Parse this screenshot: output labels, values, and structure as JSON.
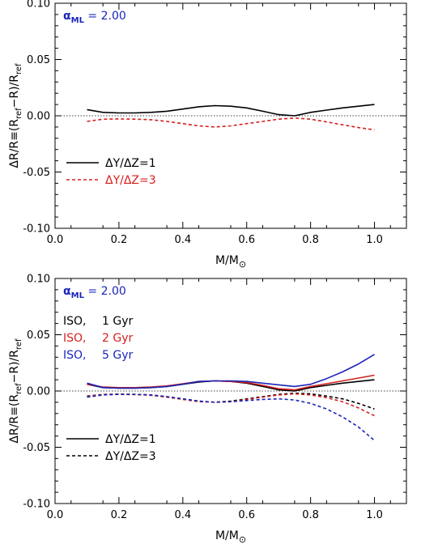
{
  "colors": {
    "black": "#000000",
    "red": "#d42020",
    "blue": "#1a25b8"
  },
  "chart_data": [
    {
      "type": "line",
      "xlabel": "M/M⊙",
      "ylabel": "ΔR/R≡(R_ref−R)/R_ref",
      "xlim": [
        0.0,
        1.1
      ],
      "ylim": [
        -0.1,
        0.1
      ],
      "xticks": [
        "0.0",
        "0.2",
        "0.4",
        "0.6",
        "0.8",
        "1.0"
      ],
      "yticks": [
        "0.10",
        "0.05",
        "0.00",
        "-0.05",
        "-0.10"
      ],
      "reference_line": 0.0,
      "annotation": {
        "symbol": "α",
        "subscript": "ML",
        "value": "= 2.00"
      },
      "legend": {
        "placement": "lower-left"
      },
      "series": [
        {
          "name": "ΔY/ΔZ=1",
          "style": "solid",
          "color": "#000000",
          "x": [
            0.1,
            0.15,
            0.2,
            0.25,
            0.3,
            0.35,
            0.4,
            0.45,
            0.5,
            0.55,
            0.6,
            0.65,
            0.7,
            0.75,
            0.8,
            0.85,
            0.9,
            0.95,
            1.0
          ],
          "y": [
            0.0055,
            0.003,
            0.0025,
            0.0025,
            0.003,
            0.004,
            0.006,
            0.008,
            0.009,
            0.0085,
            0.007,
            0.004,
            0.001,
            0.0,
            0.003,
            0.005,
            0.007,
            0.0085,
            0.01
          ]
        },
        {
          "name": "ΔY/ΔZ=3",
          "style": "dashed",
          "color": "#d42020",
          "x": [
            0.1,
            0.15,
            0.2,
            0.25,
            0.3,
            0.35,
            0.4,
            0.45,
            0.5,
            0.55,
            0.6,
            0.65,
            0.7,
            0.75,
            0.8,
            0.85,
            0.9,
            0.95,
            1.0
          ],
          "y": [
            -0.005,
            -0.003,
            -0.0028,
            -0.003,
            -0.0035,
            -0.005,
            -0.007,
            -0.009,
            -0.01,
            -0.009,
            -0.007,
            -0.005,
            -0.003,
            -0.002,
            -0.003,
            -0.0055,
            -0.008,
            -0.0105,
            -0.0125
          ]
        }
      ]
    },
    {
      "type": "line",
      "xlabel": "M/M⊙",
      "ylabel": "ΔR/R≡(R_ref−R)/R_ref",
      "xlim": [
        0.0,
        1.1
      ],
      "ylim": [
        -0.1,
        0.1
      ],
      "xticks": [
        "0.0",
        "0.2",
        "0.4",
        "0.6",
        "0.8",
        "1.0"
      ],
      "yticks": [
        "0.10",
        "0.05",
        "0.00",
        "-0.05",
        "-0.10"
      ],
      "reference_line": 0.0,
      "annotation": {
        "symbol": "α",
        "subscript": "ML",
        "value": "= 2.00"
      },
      "iso_labels": [
        {
          "prefix": "ISO,",
          "age": "1 Gyr",
          "color": "#000000"
        },
        {
          "prefix": "ISO,",
          "age": "2 Gyr",
          "color": "#d42020"
        },
        {
          "prefix": "ISO,",
          "age": "5 Gyr",
          "color": "#1a25b8"
        }
      ],
      "legend": {
        "placement": "lower-left",
        "entries": [
          {
            "label": "ΔY/ΔZ=1",
            "style": "solid"
          },
          {
            "label": "ΔY/ΔZ=3",
            "style": "dashed"
          }
        ]
      },
      "series": [
        {
          "age": "1 Gyr",
          "helium": "ΔY/ΔZ=1",
          "style": "solid",
          "color": "#000000",
          "x": [
            0.1,
            0.15,
            0.2,
            0.25,
            0.3,
            0.35,
            0.4,
            0.45,
            0.5,
            0.55,
            0.6,
            0.65,
            0.7,
            0.75,
            0.8,
            0.85,
            0.9,
            0.95,
            1.0
          ],
          "y": [
            0.006,
            0.003,
            0.0025,
            0.0025,
            0.003,
            0.004,
            0.006,
            0.008,
            0.009,
            0.0085,
            0.007,
            0.004,
            0.001,
            0.0,
            0.003,
            0.005,
            0.007,
            0.0085,
            0.01
          ]
        },
        {
          "age": "2 Gyr",
          "helium": "ΔY/ΔZ=1",
          "style": "solid",
          "color": "#d42020",
          "x": [
            0.1,
            0.15,
            0.2,
            0.25,
            0.3,
            0.35,
            0.4,
            0.45,
            0.5,
            0.55,
            0.6,
            0.65,
            0.7,
            0.75,
            0.8,
            0.85,
            0.9,
            0.95,
            1.0
          ],
          "y": [
            0.006,
            0.0035,
            0.003,
            0.003,
            0.0035,
            0.0045,
            0.0065,
            0.0085,
            0.009,
            0.0085,
            0.0075,
            0.005,
            0.002,
            0.001,
            0.004,
            0.0065,
            0.009,
            0.0115,
            0.014
          ]
        },
        {
          "age": "5 Gyr",
          "helium": "ΔY/ΔZ=1",
          "style": "solid",
          "color": "#1a25b8",
          "x": [
            0.1,
            0.15,
            0.2,
            0.25,
            0.3,
            0.35,
            0.4,
            0.45,
            0.5,
            0.55,
            0.6,
            0.65,
            0.7,
            0.75,
            0.8,
            0.85,
            0.9,
            0.95,
            1.0
          ],
          "y": [
            0.007,
            0.003,
            0.0025,
            0.0025,
            0.003,
            0.004,
            0.006,
            0.0085,
            0.009,
            0.009,
            0.0085,
            0.007,
            0.0055,
            0.004,
            0.006,
            0.011,
            0.017,
            0.024,
            0.0325
          ]
        },
        {
          "age": "1 Gyr",
          "helium": "ΔY/ΔZ=3",
          "style": "dashed",
          "color": "#000000",
          "x": [
            0.1,
            0.15,
            0.2,
            0.25,
            0.3,
            0.35,
            0.4,
            0.45,
            0.5,
            0.55,
            0.6,
            0.65,
            0.7,
            0.75,
            0.8,
            0.85,
            0.9,
            0.95,
            1.0
          ],
          "y": [
            -0.0045,
            -0.003,
            -0.0028,
            -0.003,
            -0.0035,
            -0.005,
            -0.007,
            -0.009,
            -0.01,
            -0.009,
            -0.007,
            -0.005,
            -0.003,
            -0.002,
            -0.0025,
            -0.0045,
            -0.007,
            -0.011,
            -0.016
          ]
        },
        {
          "age": "2 Gyr",
          "helium": "ΔY/ΔZ=3",
          "style": "dashed",
          "color": "#d42020",
          "x": [
            0.1,
            0.15,
            0.2,
            0.25,
            0.3,
            0.35,
            0.4,
            0.45,
            0.5,
            0.55,
            0.6,
            0.65,
            0.7,
            0.75,
            0.8,
            0.85,
            0.9,
            0.95,
            1.0
          ],
          "y": [
            -0.005,
            -0.0032,
            -0.003,
            -0.0032,
            -0.0038,
            -0.0055,
            -0.0075,
            -0.0095,
            -0.01,
            -0.0095,
            -0.0075,
            -0.0055,
            -0.0035,
            -0.0025,
            -0.0035,
            -0.006,
            -0.0095,
            -0.015,
            -0.022
          ]
        },
        {
          "age": "5 Gyr",
          "helium": "ΔY/ΔZ=3",
          "style": "dashed",
          "color": "#1a25b8",
          "x": [
            0.1,
            0.15,
            0.2,
            0.25,
            0.3,
            0.35,
            0.4,
            0.45,
            0.5,
            0.55,
            0.6,
            0.65,
            0.7,
            0.75,
            0.8,
            0.85,
            0.9,
            0.95,
            1.0
          ],
          "y": [
            -0.0055,
            -0.0035,
            -0.003,
            -0.003,
            -0.0035,
            -0.005,
            -0.007,
            -0.009,
            -0.01,
            -0.0095,
            -0.0085,
            -0.0075,
            -0.007,
            -0.008,
            -0.011,
            -0.016,
            -0.023,
            -0.032,
            -0.044
          ]
        }
      ]
    }
  ]
}
